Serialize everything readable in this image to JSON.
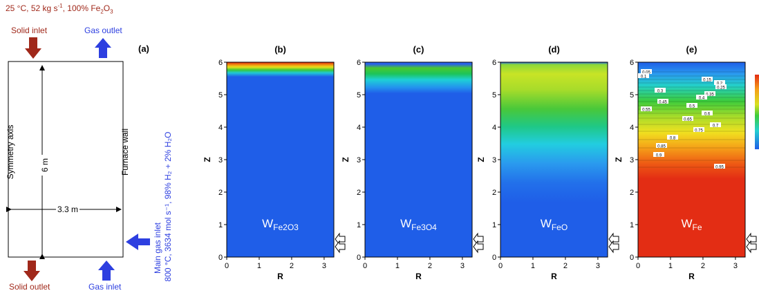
{
  "schematic": {
    "panel_label": "(a)",
    "solid_feed": "25 °C, 52 kg s",
    "solid_feed_exp": "-1",
    "solid_feed_mid": ", 100% Fe",
    "solid_feed_sub1": "2",
    "solid_feed_o": "O",
    "solid_feed_sub2": "3",
    "solid_inlet": "Solid inlet",
    "gas_outlet": "Gas outlet",
    "solid_outlet": "Solid outlet",
    "gas_inlet": "Gas inlet",
    "symmetry_axis": "Symmetry axis",
    "furnace_wall": "Furnace wall",
    "height": "6 m",
    "width": "3.3 m",
    "main_gas_inlet": "Main gas inlet",
    "main_gas_conditions": "800 °C, 3634 mol s⁻¹, 98% H₂ + 2% H₂O",
    "colors": {
      "solid": "#a0281a",
      "gas": "#2d3fe0"
    }
  },
  "panels": [
    {
      "label": "(b)",
      "field": "W",
      "sub": "Fe2O3"
    },
    {
      "label": "(c)",
      "field": "W",
      "sub": "Fe3O4"
    },
    {
      "label": "(d)",
      "field": "W",
      "sub": "FeO"
    },
    {
      "label": "(e)",
      "field": "W",
      "sub": "Fe"
    }
  ],
  "axes": {
    "x_label": "R",
    "y_label": "Z",
    "x_ticks": [
      "0",
      "1",
      "2",
      "3"
    ],
    "y_ticks": [
      "0",
      "1",
      "2",
      "3",
      "4",
      "5",
      "6"
    ]
  },
  "contour_labels": [
    "0.05",
    "0.1",
    "0.15",
    "0.2",
    "0.25",
    "0.3",
    "0.35",
    "0.4",
    "0.45",
    "0.5",
    "0.55",
    "0.6",
    "0.65",
    "0.7",
    "0.75",
    "0.8",
    "0.85",
    "0.9",
    "0.95"
  ]
}
